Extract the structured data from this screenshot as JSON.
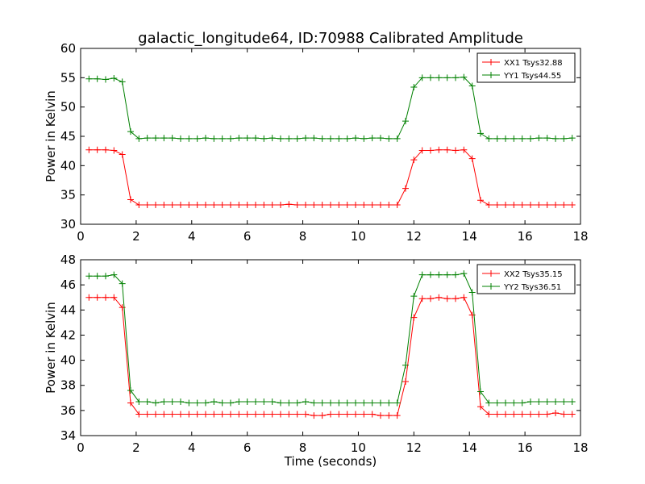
{
  "title": "galactic_longitude64, ID:70988 Calibrated Amplitude",
  "chart_data": [
    {
      "type": "line",
      "ylabel": "Power in Kelvin",
      "xlabel": "",
      "xlim": [
        0,
        18
      ],
      "ylim": [
        30,
        60
      ],
      "xticks": [
        "0",
        "2",
        "4",
        "6",
        "8",
        "10",
        "12",
        "14",
        "16",
        "18"
      ],
      "yticks": [
        "30",
        "35",
        "40",
        "45",
        "50",
        "55",
        "60"
      ],
      "grid": false,
      "legend_position": "top-right",
      "x": [
        0.3,
        0.6,
        0.9,
        1.2,
        1.5,
        1.8,
        2.1,
        2.4,
        2.7,
        3.0,
        3.3,
        3.6,
        3.9,
        4.2,
        4.5,
        4.8,
        5.1,
        5.4,
        5.7,
        6.0,
        6.3,
        6.6,
        6.9,
        7.2,
        7.5,
        7.8,
        8.1,
        8.4,
        8.7,
        9.0,
        9.3,
        9.6,
        9.9,
        10.2,
        10.5,
        10.8,
        11.1,
        11.4,
        11.7,
        12.0,
        12.3,
        12.6,
        12.9,
        13.2,
        13.5,
        13.8,
        14.1,
        14.4,
        14.7,
        15.0,
        15.3,
        15.6,
        15.9,
        16.2,
        16.5,
        16.8,
        17.1,
        17.4,
        17.7
      ],
      "series": [
        {
          "name": "XX1 Tsys32.88",
          "color": "#ff0000",
          "values": [
            42.7,
            42.7,
            42.7,
            42.6,
            41.9,
            34.2,
            33.3,
            33.3,
            33.3,
            33.3,
            33.3,
            33.3,
            33.3,
            33.3,
            33.3,
            33.3,
            33.3,
            33.3,
            33.3,
            33.3,
            33.3,
            33.3,
            33.3,
            33.3,
            33.4,
            33.3,
            33.3,
            33.3,
            33.3,
            33.3,
            33.3,
            33.3,
            33.3,
            33.3,
            33.3,
            33.3,
            33.3,
            33.3,
            36.1,
            41.0,
            42.6,
            42.6,
            42.7,
            42.7,
            42.6,
            42.7,
            41.2,
            34.1,
            33.3,
            33.3,
            33.3,
            33.3,
            33.3,
            33.3,
            33.3,
            33.3,
            33.3,
            33.3,
            33.3
          ]
        },
        {
          "name": "YY1 Tsys44.55",
          "color": "#008000",
          "values": [
            54.8,
            54.8,
            54.7,
            54.9,
            54.3,
            45.8,
            44.6,
            44.7,
            44.7,
            44.7,
            44.7,
            44.6,
            44.6,
            44.6,
            44.7,
            44.6,
            44.6,
            44.6,
            44.7,
            44.7,
            44.7,
            44.6,
            44.7,
            44.6,
            44.6,
            44.6,
            44.7,
            44.7,
            44.6,
            44.6,
            44.6,
            44.6,
            44.7,
            44.6,
            44.7,
            44.7,
            44.6,
            44.6,
            47.6,
            53.4,
            55.0,
            55.0,
            55.0,
            55.0,
            55.0,
            55.1,
            53.6,
            45.5,
            44.6,
            44.6,
            44.6,
            44.6,
            44.6,
            44.6,
            44.7,
            44.7,
            44.6,
            44.6,
            44.7
          ]
        }
      ]
    },
    {
      "type": "line",
      "ylabel": "Power in Kelvin",
      "xlabel": "Time (seconds)",
      "xlim": [
        0,
        18
      ],
      "ylim": [
        34,
        48
      ],
      "xticks": [
        "0",
        "2",
        "4",
        "6",
        "8",
        "10",
        "12",
        "14",
        "16",
        "18"
      ],
      "yticks": [
        "34",
        "36",
        "38",
        "40",
        "42",
        "44",
        "46",
        "48"
      ],
      "grid": false,
      "legend_position": "top-right",
      "x": [
        0.3,
        0.6,
        0.9,
        1.2,
        1.5,
        1.8,
        2.1,
        2.4,
        2.7,
        3.0,
        3.3,
        3.6,
        3.9,
        4.2,
        4.5,
        4.8,
        5.1,
        5.4,
        5.7,
        6.0,
        6.3,
        6.6,
        6.9,
        7.2,
        7.5,
        7.8,
        8.1,
        8.4,
        8.7,
        9.0,
        9.3,
        9.6,
        9.9,
        10.2,
        10.5,
        10.8,
        11.1,
        11.4,
        11.7,
        12.0,
        12.3,
        12.6,
        12.9,
        13.2,
        13.5,
        13.8,
        14.1,
        14.4,
        14.7,
        15.0,
        15.3,
        15.6,
        15.9,
        16.2,
        16.5,
        16.8,
        17.1,
        17.4,
        17.7
      ],
      "series": [
        {
          "name": "XX2 Tsys35.15",
          "color": "#ff0000",
          "values": [
            45.0,
            45.0,
            45.0,
            45.0,
            44.2,
            36.6,
            35.7,
            35.7,
            35.7,
            35.7,
            35.7,
            35.7,
            35.7,
            35.7,
            35.7,
            35.7,
            35.7,
            35.7,
            35.7,
            35.7,
            35.7,
            35.7,
            35.7,
            35.7,
            35.7,
            35.7,
            35.7,
            35.6,
            35.6,
            35.7,
            35.7,
            35.7,
            35.7,
            35.7,
            35.7,
            35.6,
            35.6,
            35.6,
            38.3,
            43.4,
            44.9,
            44.9,
            45.0,
            44.9,
            44.9,
            45.0,
            43.6,
            36.3,
            35.7,
            35.7,
            35.7,
            35.7,
            35.7,
            35.7,
            35.7,
            35.7,
            35.8,
            35.7,
            35.7
          ]
        },
        {
          "name": "YY2 Tsys36.51",
          "color": "#008000",
          "values": [
            46.7,
            46.7,
            46.7,
            46.8,
            46.1,
            37.6,
            36.7,
            36.7,
            36.6,
            36.7,
            36.7,
            36.7,
            36.6,
            36.6,
            36.6,
            36.7,
            36.6,
            36.6,
            36.7,
            36.7,
            36.7,
            36.7,
            36.7,
            36.6,
            36.6,
            36.6,
            36.7,
            36.6,
            36.6,
            36.6,
            36.6,
            36.6,
            36.6,
            36.6,
            36.6,
            36.6,
            36.6,
            36.6,
            39.6,
            45.1,
            46.8,
            46.8,
            46.8,
            46.8,
            46.8,
            46.9,
            45.4,
            37.5,
            36.6,
            36.6,
            36.6,
            36.6,
            36.6,
            36.7,
            36.7,
            36.7,
            36.7,
            36.7,
            36.7
          ]
        }
      ]
    }
  ]
}
